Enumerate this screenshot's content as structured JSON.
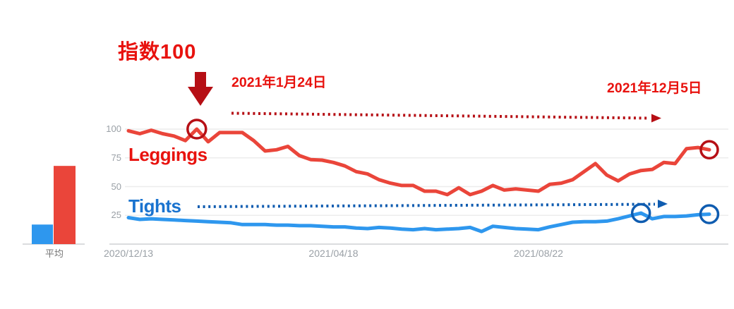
{
  "annotations": {
    "index_label": "指数100",
    "peak_date": "2021年1月24日",
    "end_date": "2021年12月5日"
  },
  "colors": {
    "bright_red_text": "#e8120e",
    "annotation_dark_red": "#b60f15",
    "blue_label_text": "#1a73cf",
    "annotation_dark_blue": "#0f5cb0",
    "leggings_line": "#ea453a",
    "tights_line": "#2e97ee",
    "gridline": "#ececec",
    "axis": "#cfd1d4",
    "tick_text": "#9aa0a6",
    "avg_text": "#757575"
  },
  "chart_data": {
    "type": "line",
    "x_unit": "week",
    "x_tick_labels": [
      "2020/12/13",
      "2021/04/18",
      "2021/08/22"
    ],
    "x_tick_indices": [
      0,
      18,
      36
    ],
    "y_ticks": [
      100,
      75,
      50,
      25
    ],
    "ylim": [
      0,
      100
    ],
    "grid": true,
    "series": [
      {
        "name": "Leggings",
        "color": "#ea453a",
        "values": [
          98.5,
          96,
          99,
          96,
          94,
          90,
          100,
          89,
          97,
          97,
          97,
          90,
          81,
          82,
          85,
          77,
          73.5,
          73,
          71,
          68,
          63,
          61,
          56,
          53,
          51,
          51,
          46,
          46,
          43,
          49,
          43,
          46,
          51,
          47,
          48,
          47,
          46,
          52,
          53,
          56,
          63,
          70,
          60,
          55,
          61,
          64,
          65,
          71,
          70,
          83,
          84,
          82
        ]
      },
      {
        "name": "Tights",
        "color": "#2e97ee",
        "values": [
          23,
          21.5,
          22,
          21.5,
          21,
          20.5,
          20,
          19.5,
          19,
          18.5,
          17,
          17,
          17,
          16.5,
          16.5,
          16,
          16,
          15.5,
          15,
          15,
          14,
          13.5,
          14.5,
          14,
          13,
          12.5,
          13.5,
          12.5,
          13,
          13.5,
          14.5,
          11,
          15.5,
          14.5,
          13.5,
          13,
          12.5,
          15,
          17,
          19,
          19.5,
          19.5,
          20,
          22,
          24.5,
          27,
          22,
          24,
          24,
          24.5,
          25.5,
          26
        ]
      }
    ],
    "highlights": [
      {
        "series": 0,
        "index": 6,
        "r": 13,
        "color": "#b60f15"
      },
      {
        "series": 0,
        "index": 51,
        "r": 12,
        "color": "#b60f15"
      },
      {
        "series": 1,
        "index": 45,
        "r": 12.5,
        "color": "#0f5cb0"
      },
      {
        "series": 1,
        "index": 51,
        "r": 12.5,
        "color": "#0f5cb0"
      }
    ],
    "avg_bars": {
      "label": "平均",
      "bars": [
        {
          "name": "Tights",
          "value": 17,
          "color": "#2e97ee"
        },
        {
          "name": "Leggings",
          "value": 68,
          "color": "#ea453a"
        }
      ]
    }
  }
}
